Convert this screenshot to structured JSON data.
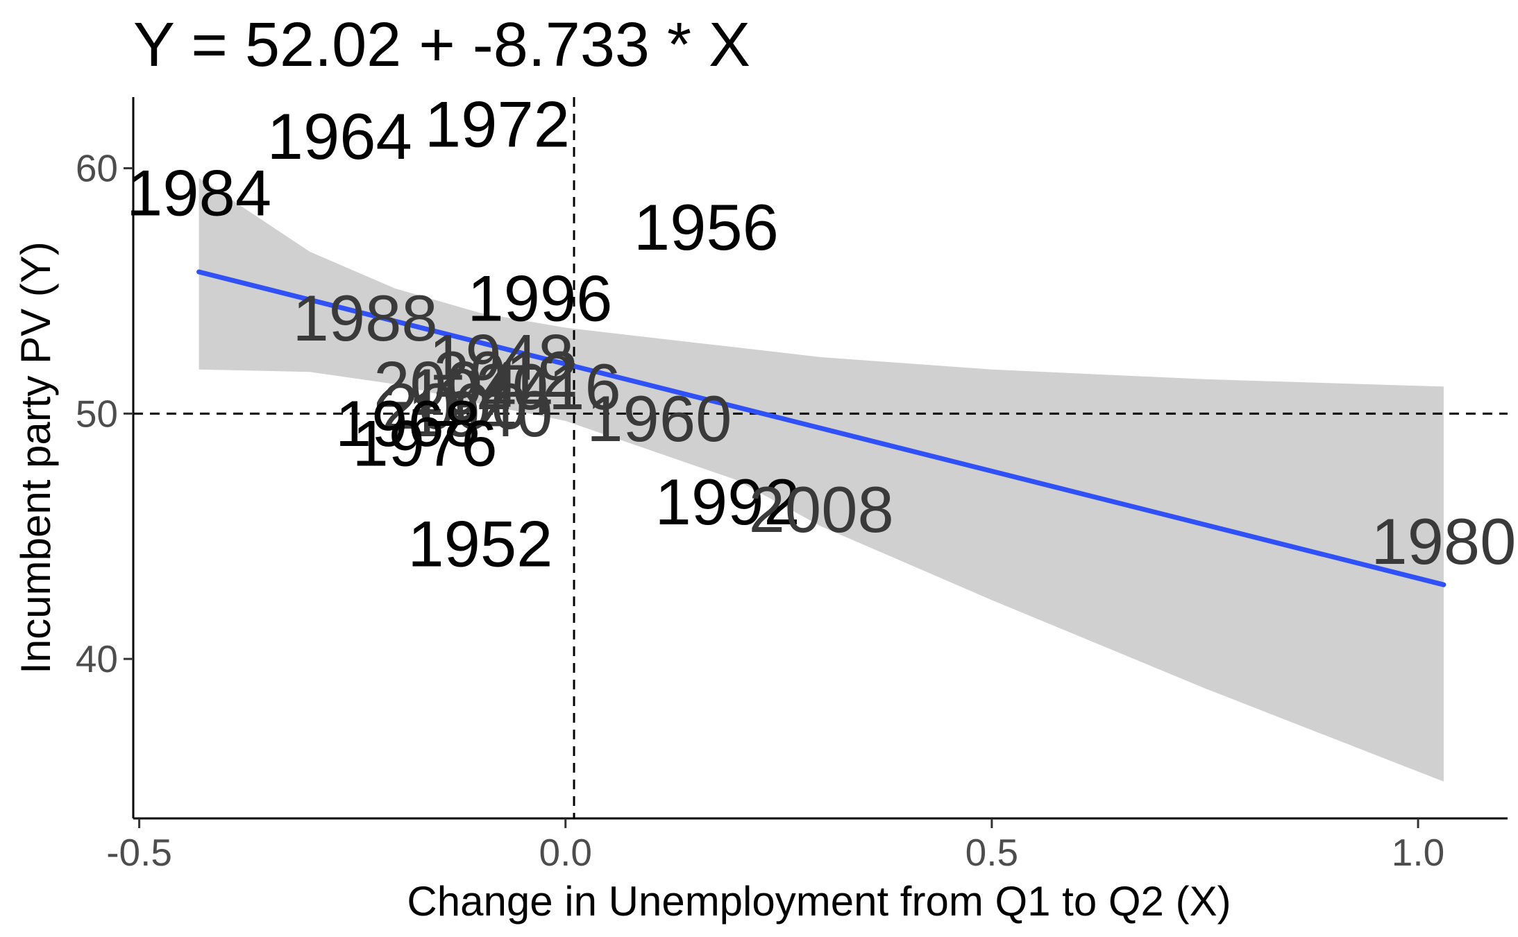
{
  "chart_data": {
    "type": "scatter",
    "title": "Y = 52.02 + -8.733 * X",
    "xlabel": "Change in Unemployment from Q1 to Q2 (X)",
    "ylabel": "Incumbent party PV (Y)",
    "xlim": [
      -0.507,
      1.105
    ],
    "ylim": [
      33.5,
      62.9
    ],
    "x_ticks": [
      -0.5,
      0.0,
      0.5,
      1.0
    ],
    "x_tick_labels": [
      "-0.5",
      "0.0",
      "0.5",
      "1.0"
    ],
    "y_ticks": [
      40,
      50,
      60
    ],
    "y_tick_labels": [
      "40",
      "50",
      "60"
    ],
    "reference_lines": {
      "x": 0.01,
      "y": 50
    },
    "regression": {
      "intercept": 52.02,
      "slope": -8.733,
      "x_range": [
        -0.43,
        1.03
      ]
    },
    "confidence_band": [
      {
        "x": -0.43,
        "lower": 51.8,
        "upper": 59.6
      },
      {
        "x": -0.3,
        "lower": 51.7,
        "upper": 56.6
      },
      {
        "x": -0.2,
        "lower": 51.2,
        "upper": 55.1
      },
      {
        "x": -0.1,
        "lower": 50.4,
        "upper": 54.1
      },
      {
        "x": 0.0,
        "lower": 49.7,
        "upper": 53.5
      },
      {
        "x": 0.1,
        "lower": 48.5,
        "upper": 53.1
      },
      {
        "x": 0.2,
        "lower": 47.3,
        "upper": 52.7
      },
      {
        "x": 0.3,
        "lower": 45.4,
        "upper": 52.3
      },
      {
        "x": 0.5,
        "lower": 42.4,
        "upper": 51.8
      },
      {
        "x": 0.75,
        "lower": 38.8,
        "upper": 51.4
      },
      {
        "x": 1.03,
        "lower": 35.0,
        "upper": 51.1
      }
    ],
    "points": [
      {
        "label": "1984",
        "x": -0.43,
        "y": 59.0,
        "color": "#000000"
      },
      {
        "label": "1964",
        "x": -0.265,
        "y": 61.3,
        "color": "#000000"
      },
      {
        "label": "1972",
        "x": -0.08,
        "y": 61.8,
        "color": "#000000"
      },
      {
        "label": "1956",
        "x": 0.165,
        "y": 57.6,
        "color": "#000000"
      },
      {
        "label": "1996",
        "x": -0.03,
        "y": 54.7,
        "color": "#000000"
      },
      {
        "label": "1988",
        "x": -0.235,
        "y": 53.9,
        "color": "#3a3a3a"
      },
      {
        "label": "1948",
        "x": -0.075,
        "y": 52.3,
        "color": "#3a3a3a"
      },
      {
        "label": "2012",
        "x": -0.07,
        "y": 51.6,
        "color": "#3a3a3a"
      },
      {
        "label": "2004",
        "x": -0.14,
        "y": 51.2,
        "color": "#3a3a3a"
      },
      {
        "label": "1944",
        "x": -0.1,
        "y": 50.9,
        "color": "#3a3a3a"
      },
      {
        "label": "2016",
        "x": -0.02,
        "y": 51.1,
        "color": "#3a3a3a"
      },
      {
        "label": "2000",
        "x": -0.13,
        "y": 50.3,
        "color": "#3a3a3a"
      },
      {
        "label": "1940",
        "x": -0.1,
        "y": 50.0,
        "color": "#3a3a3a"
      },
      {
        "label": "1968",
        "x": -0.185,
        "y": 49.6,
        "color": "#000000"
      },
      {
        "label": "1976",
        "x": -0.165,
        "y": 48.8,
        "color": "#000000"
      },
      {
        "label": "1960",
        "x": 0.11,
        "y": 49.8,
        "color": "#3a3a3a"
      },
      {
        "label": "1952",
        "x": -0.1,
        "y": 44.7,
        "color": "#000000"
      },
      {
        "label": "1992",
        "x": 0.19,
        "y": 46.4,
        "color": "#000000"
      },
      {
        "label": "2008",
        "x": 0.3,
        "y": 46.1,
        "color": "#3a3a3a"
      },
      {
        "label": "1980",
        "x": 1.03,
        "y": 44.8,
        "color": "#3a3a3a"
      }
    ],
    "line_color": "#3050f8",
    "band_color": "#d0d0d0",
    "grid": false,
    "legend": "none"
  }
}
